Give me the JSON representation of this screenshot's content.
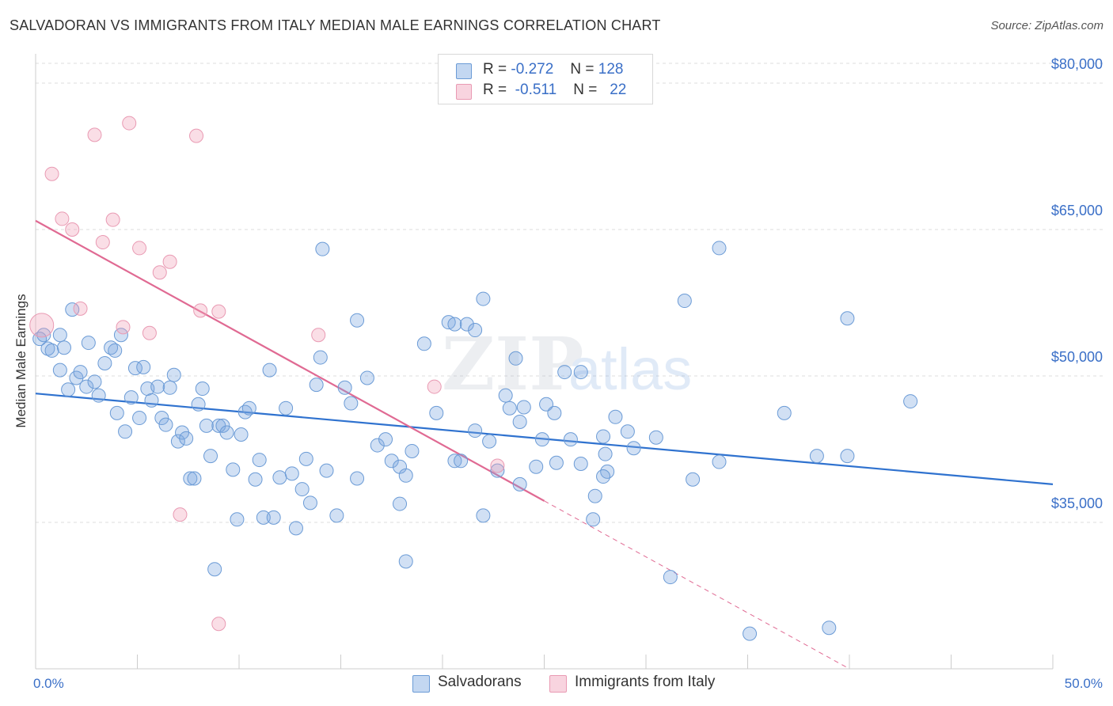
{
  "header": {
    "title": "SALVADORAN VS IMMIGRANTS FROM ITALY MEDIAN MALE EARNINGS CORRELATION CHART",
    "source": "Source: ZipAtlas.com"
  },
  "watermark": "ZIPatlas",
  "legend": {
    "rows": [
      {
        "r_label": "R =",
        "r_value": "-0.272",
        "n_label": "N =",
        "n_value": "128",
        "color": "#7aa7e0"
      },
      {
        "r_label": "R =",
        "r_value": "-0.511",
        "n_label": "N =",
        "n_value": "22",
        "color": "#f0a0b8"
      }
    ]
  },
  "bottom_legend": {
    "items": [
      {
        "label": "Salvadorans",
        "color": "#7aa7e0"
      },
      {
        "label": "Immigrants from Italy",
        "color": "#f0a0b8"
      }
    ]
  },
  "colors": {
    "blue_fill": "rgba(122,167,224,0.35)",
    "blue_stroke": "#6b9bd6",
    "blue_line": "#2f72cf",
    "pink_fill": "rgba(240,160,184,0.35)",
    "pink_stroke": "#e99ab3",
    "pink_line": "#e06a93",
    "axis_label": "#3a6fc7",
    "grid": "#dddddd"
  },
  "chart_data": {
    "type": "scatter",
    "title": "SALVADORAN VS IMMIGRANTS FROM ITALY MEDIAN MALE EARNINGS CORRELATION CHART",
    "xlabel": "",
    "ylabel": "Median Male Earnings",
    "xlim": [
      0,
      50
    ],
    "ylim": [
      20000,
      83000
    ],
    "x_tick_labels": [
      "0.0%",
      "50.0%"
    ],
    "y_ticks": [
      35000,
      50000,
      65000,
      80000
    ],
    "y_tick_labels": [
      "$35,000",
      "$50,000",
      "$65,000",
      "$80,000"
    ],
    "grid": true,
    "series": [
      {
        "name": "Salvadorans",
        "points": [
          [
            0.2,
            53800
          ],
          [
            0.4,
            54200
          ],
          [
            0.6,
            52800
          ],
          [
            0.8,
            52600
          ],
          [
            1.2,
            54200
          ],
          [
            1.4,
            52900
          ],
          [
            1.2,
            50600
          ],
          [
            1.6,
            48600
          ],
          [
            1.8,
            56800
          ],
          [
            2.0,
            49800
          ],
          [
            2.2,
            50400
          ],
          [
            2.5,
            48900
          ],
          [
            2.6,
            53400
          ],
          [
            2.9,
            49400
          ],
          [
            3.1,
            48000
          ],
          [
            3.4,
            51300
          ],
          [
            3.7,
            52900
          ],
          [
            3.9,
            52600
          ],
          [
            4.0,
            46200
          ],
          [
            4.2,
            54200
          ],
          [
            4.4,
            44300
          ],
          [
            4.7,
            47800
          ],
          [
            4.9,
            50800
          ],
          [
            5.1,
            45700
          ],
          [
            5.3,
            50900
          ],
          [
            5.5,
            48700
          ],
          [
            5.7,
            47500
          ],
          [
            6.0,
            48900
          ],
          [
            6.2,
            45700
          ],
          [
            6.4,
            45000
          ],
          [
            6.6,
            48800
          ],
          [
            6.8,
            50100
          ],
          [
            7.0,
            43300
          ],
          [
            7.2,
            44200
          ],
          [
            7.4,
            43600
          ],
          [
            7.6,
            39500
          ],
          [
            7.8,
            39500
          ],
          [
            8.0,
            47100
          ],
          [
            8.2,
            48700
          ],
          [
            8.4,
            44900
          ],
          [
            8.6,
            41800
          ],
          [
            8.8,
            30200
          ],
          [
            9.0,
            44900
          ],
          [
            9.2,
            44900
          ],
          [
            9.4,
            44200
          ],
          [
            9.7,
            40400
          ],
          [
            9.9,
            35300
          ],
          [
            10.1,
            44000
          ],
          [
            10.3,
            46300
          ],
          [
            10.5,
            46700
          ],
          [
            10.8,
            39400
          ],
          [
            11.0,
            41400
          ],
          [
            11.2,
            35500
          ],
          [
            11.5,
            50600
          ],
          [
            11.7,
            35500
          ],
          [
            12.0,
            39600
          ],
          [
            12.3,
            46700
          ],
          [
            12.6,
            40000
          ],
          [
            12.8,
            34400
          ],
          [
            13.1,
            38400
          ],
          [
            13.3,
            41500
          ],
          [
            13.5,
            37000
          ],
          [
            13.8,
            49100
          ],
          [
            14.0,
            51900
          ],
          [
            14.3,
            40300
          ],
          [
            14.1,
            63000
          ],
          [
            14.8,
            35700
          ],
          [
            15.2,
            48800
          ],
          [
            15.5,
            47200
          ],
          [
            15.8,
            39500
          ],
          [
            15.8,
            55700
          ],
          [
            16.3,
            49800
          ],
          [
            16.8,
            42900
          ],
          [
            17.2,
            43500
          ],
          [
            17.5,
            41300
          ],
          [
            17.9,
            40700
          ],
          [
            17.9,
            36900
          ],
          [
            18.2,
            39800
          ],
          [
            18.5,
            42300
          ],
          [
            18.2,
            31000
          ],
          [
            19.1,
            53300
          ],
          [
            19.7,
            46200
          ],
          [
            20.3,
            55500
          ],
          [
            20.6,
            41300
          ],
          [
            20.6,
            55300
          ],
          [
            20.9,
            41300
          ],
          [
            21.2,
            55300
          ],
          [
            21.6,
            54700
          ],
          [
            21.6,
            44400
          ],
          [
            22.0,
            35700
          ],
          [
            22.0,
            57900
          ],
          [
            22.3,
            43300
          ],
          [
            22.7,
            40300
          ],
          [
            23.1,
            48000
          ],
          [
            23.3,
            46700
          ],
          [
            23.6,
            51800
          ],
          [
            23.8,
            45300
          ],
          [
            23.8,
            38900
          ],
          [
            24.0,
            46800
          ],
          [
            24.6,
            40700
          ],
          [
            24.9,
            43500
          ],
          [
            25.1,
            47100
          ],
          [
            25.5,
            46200
          ],
          [
            25.6,
            41100
          ],
          [
            26.0,
            50400
          ],
          [
            26.3,
            43500
          ],
          [
            26.8,
            41000
          ],
          [
            26.8,
            50400
          ],
          [
            27.4,
            35300
          ],
          [
            27.5,
            37700
          ],
          [
            27.9,
            43800
          ],
          [
            28.0,
            42000
          ],
          [
            28.1,
            40200
          ],
          [
            28.5,
            45800
          ],
          [
            27.9,
            39700
          ],
          [
            29.1,
            44300
          ],
          [
            29.4,
            42600
          ],
          [
            30.5,
            43700
          ],
          [
            31.2,
            29400
          ],
          [
            31.9,
            57700
          ],
          [
            32.3,
            39400
          ],
          [
            33.6,
            41200
          ],
          [
            35.1,
            23600
          ],
          [
            33.6,
            63100
          ],
          [
            36.8,
            46200
          ],
          [
            38.4,
            41800
          ],
          [
            39.0,
            24200
          ],
          [
            39.9,
            55900
          ],
          [
            39.9,
            41800
          ],
          [
            43.0,
            47400
          ]
        ],
        "trend": {
          "x": [
            0,
            50
          ],
          "y": [
            48200,
            38900
          ]
        }
      },
      {
        "name": "Immigrants from Italy",
        "points": [
          [
            0.3,
            55200
          ],
          [
            0.8,
            70700
          ],
          [
            1.3,
            66100
          ],
          [
            1.8,
            65000
          ],
          [
            2.2,
            56900
          ],
          [
            2.9,
            74700
          ],
          [
            3.3,
            63700
          ],
          [
            3.8,
            66000
          ],
          [
            4.3,
            55000
          ],
          [
            4.6,
            75900
          ],
          [
            5.1,
            63100
          ],
          [
            5.6,
            54400
          ],
          [
            6.1,
            60600
          ],
          [
            6.6,
            61700
          ],
          [
            7.1,
            35800
          ],
          [
            7.9,
            74600
          ],
          [
            8.1,
            56700
          ],
          [
            9.0,
            56600
          ],
          [
            9.0,
            24600
          ],
          [
            13.9,
            54200
          ],
          [
            19.6,
            48900
          ],
          [
            22.7,
            40800
          ]
        ],
        "trend_solid": {
          "x": [
            0,
            25
          ],
          "y": [
            65900,
            37200
          ]
        },
        "trend_dashed": {
          "x": [
            25,
            40
          ],
          "y": [
            37200,
            20000
          ]
        }
      }
    ]
  }
}
